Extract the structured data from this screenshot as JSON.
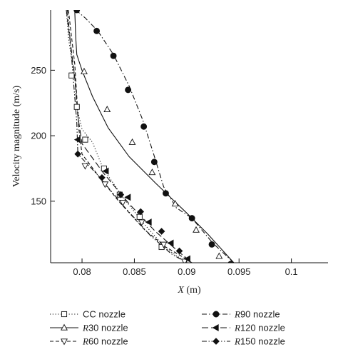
{
  "chart_data": {
    "type": "line",
    "xlabel_italic": "X",
    "xlabel_rest": " (m)",
    "ylabel": "Velocity magnitude (m/s)",
    "xlim": [
      0.077,
      0.1035
    ],
    "ylim": [
      103,
      296
    ],
    "xticks": [
      0.08,
      0.085,
      0.09,
      0.095,
      0.1
    ],
    "xtick_labels": [
      "0.08",
      "0.085",
      "0.09",
      "0.095",
      "0.1"
    ],
    "yticks": [
      150,
      200,
      250
    ],
    "ytick_labels": [
      "150",
      "200",
      "250"
    ],
    "grid": false,
    "legend_position": "bottom",
    "series": [
      {
        "name": "CC nozzle",
        "name_italic": "",
        "name_rest": "CC nozzle",
        "line": "dotted",
        "marker": "open-square",
        "line_x": [
          0.0785,
          0.0787,
          0.079,
          0.0793,
          0.0795,
          0.08,
          0.081,
          0.082,
          0.084,
          0.086,
          0.088,
          0.09
        ],
        "line_y": [
          296,
          275,
          258,
          246,
          222,
          205,
          195,
          175,
          152,
          132,
          114,
          103
        ],
        "markers_x": [
          0.079,
          0.0795,
          0.0803,
          0.0821,
          0.0836,
          0.0855,
          0.0876
        ],
        "markers_y": [
          246,
          222,
          197,
          175,
          155,
          138,
          115
        ]
      },
      {
        "name": "R30 nozzle",
        "name_italic": "R",
        "name_rest": "30 nozzle",
        "line": "solid",
        "marker": "open-triangle-up",
        "line_x": [
          0.0793,
          0.0794,
          0.0795,
          0.08,
          0.081,
          0.0825,
          0.0845,
          0.087,
          0.09,
          0.092,
          0.0945
        ],
        "line_y": [
          296,
          275,
          262,
          250,
          230,
          206,
          184,
          164,
          141,
          125,
          103
        ],
        "markers_x": [
          0.0802,
          0.0824,
          0.0848,
          0.0867,
          0.0889,
          0.0909,
          0.0931
        ],
        "markers_y": [
          249,
          220,
          195,
          172,
          148,
          128,
          108
        ]
      },
      {
        "name": "R60 nozzle",
        "name_italic": "R",
        "name_rest": "60 nozzle",
        "line": "dashed",
        "marker": "open-triangle-down",
        "line_x": [
          0.0787,
          0.079,
          0.0793,
          0.0795,
          0.0797,
          0.08,
          0.0815,
          0.0835,
          0.086,
          0.088,
          0.0895,
          0.0905
        ],
        "line_y": [
          296,
          275,
          255,
          230,
          205,
          186,
          170,
          150,
          128,
          115,
          108,
          103
        ],
        "markers_x": [
          0.0803,
          0.0822,
          0.0839,
          0.0857,
          0.0878,
          0.0898
        ],
        "markers_y": [
          177,
          163,
          149,
          134,
          117,
          104
        ]
      },
      {
        "name": "R90 nozzle",
        "name_italic": "R",
        "name_rest": "90 nozzle",
        "line": "dash-dot",
        "marker": "filled-circle",
        "line_x": [
          0.0794,
          0.0803,
          0.0815,
          0.083,
          0.0845,
          0.0858,
          0.0868,
          0.0878,
          0.089,
          0.0905,
          0.0925,
          0.0945
        ],
        "line_y": [
          296,
          290,
          280,
          262,
          238,
          212,
          187,
          161,
          145,
          137,
          118,
          103
        ],
        "markers_x": [
          0.0795,
          0.0814,
          0.083,
          0.0844,
          0.0859,
          0.0869,
          0.088,
          0.0905,
          0.0924,
          0.0942
        ],
        "markers_y": [
          296,
          280,
          261,
          235,
          207,
          180,
          156,
          137,
          117,
          102
        ]
      },
      {
        "name": "R120 nozzle",
        "name_italic": "R",
        "name_rest": "120 nozzle",
        "line": "long-dash",
        "marker": "filled-triangle-left",
        "line_x": [
          0.0785,
          0.0789,
          0.0793,
          0.0796,
          0.08,
          0.082,
          0.0845,
          0.087,
          0.089,
          0.0905
        ],
        "line_y": [
          296,
          270,
          245,
          215,
          194,
          172,
          148,
          127,
          113,
          103
        ],
        "markers_x": [
          0.0796,
          0.0823,
          0.0844,
          0.0864,
          0.0885,
          0.0901
        ],
        "markers_y": [
          197,
          173,
          153,
          134,
          118,
          106
        ]
      },
      {
        "name": "R150 nozzle",
        "name_italic": "R",
        "name_rest": "150 nozzle",
        "line": "dash-dot-dot",
        "marker": "filled-diamond",
        "line_x": [
          0.0786,
          0.0789,
          0.0792,
          0.0795,
          0.0796,
          0.0815,
          0.084,
          0.0865,
          0.0885,
          0.09
        ],
        "line_y": [
          296,
          270,
          240,
          210,
          186,
          170,
          146,
          124,
          110,
          103
        ],
        "markers_x": [
          0.0796,
          0.0819,
          0.0837,
          0.0856,
          0.0876,
          0.0893
        ],
        "markers_y": [
          186,
          168,
          155,
          142,
          127,
          112
        ]
      }
    ]
  }
}
